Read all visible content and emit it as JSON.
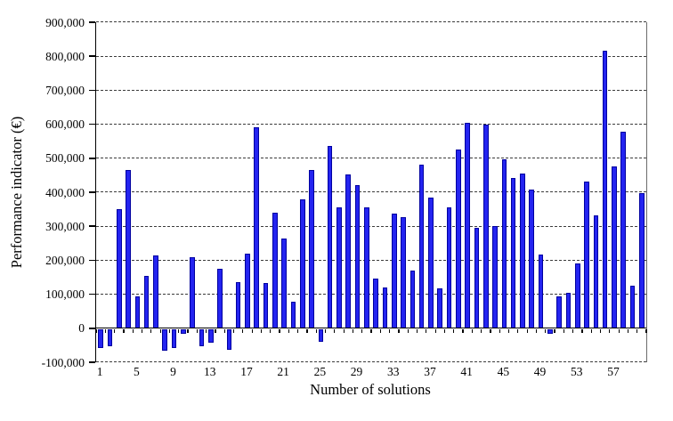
{
  "chart_data": {
    "type": "bar",
    "title": "",
    "xlabel": "Number of solutions",
    "ylabel": "Performance indicator (€)",
    "ylim": [
      -100000,
      900000
    ],
    "ytick_step": 100000,
    "yticks": [
      900000,
      800000,
      700000,
      600000,
      500000,
      400000,
      300000,
      200000,
      100000,
      0,
      -100000
    ],
    "ytick_labels": [
      "900,000",
      "800,000",
      "700,000",
      "600,000",
      "500,000",
      "400,000",
      "300,000",
      "200,000",
      "100,000",
      "0",
      "-100,000"
    ],
    "xticks": [
      1,
      5,
      9,
      13,
      17,
      21,
      25,
      29,
      33,
      37,
      41,
      45,
      49,
      53,
      57
    ],
    "xtick_labels": [
      "1",
      "5",
      "9",
      "13",
      "17",
      "21",
      "25",
      "29",
      "33",
      "37",
      "41",
      "45",
      "49",
      "53",
      "57"
    ],
    "x": [
      1,
      2,
      3,
      4,
      5,
      6,
      7,
      8,
      9,
      10,
      11,
      12,
      13,
      14,
      15,
      16,
      17,
      18,
      19,
      20,
      21,
      22,
      23,
      24,
      25,
      26,
      27,
      28,
      29,
      30,
      31,
      32,
      33,
      34,
      35,
      36,
      37,
      38,
      39,
      40,
      41,
      42,
      43,
      44,
      45,
      46,
      47,
      48,
      49,
      50,
      51,
      52,
      53,
      54,
      55,
      56,
      57,
      58,
      59,
      60
    ],
    "values": [
      -55000,
      -50000,
      350000,
      465000,
      95000,
      155000,
      215000,
      -65000,
      -57000,
      -15000,
      210000,
      -50000,
      -40000,
      175000,
      -62000,
      135000,
      220000,
      590000,
      132000,
      340000,
      265000,
      77000,
      378000,
      465000,
      -38000,
      535000,
      355000,
      453000,
      420000,
      355000,
      146000,
      120000,
      338000,
      328000,
      170000,
      480000,
      384000,
      118000,
      355000,
      525000,
      605000,
      295000,
      598000,
      300000,
      498000,
      443000,
      455000,
      408000,
      216000,
      -13000,
      94000,
      105000,
      190000,
      432000,
      332000,
      815000,
      477000,
      578000,
      124000,
      398000
    ],
    "grid": "horizontal-dashed",
    "legend": "none",
    "bar_color": "#2424f0",
    "bar_border_color": "#0000a0",
    "gridline_color": "#3c3c3c",
    "axis_color": "#000000",
    "background_color": "#ffffff"
  }
}
